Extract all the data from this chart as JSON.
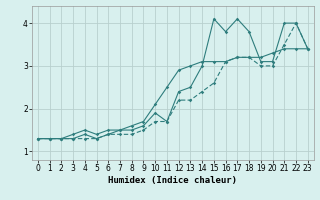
{
  "x": [
    0,
    1,
    2,
    3,
    4,
    5,
    6,
    7,
    8,
    9,
    10,
    11,
    12,
    13,
    14,
    15,
    16,
    17,
    18,
    19,
    20,
    21,
    22,
    23
  ],
  "line1": [
    1.3,
    1.3,
    1.3,
    1.3,
    1.4,
    1.3,
    1.4,
    1.5,
    1.5,
    1.6,
    1.9,
    1.7,
    2.4,
    2.5,
    3.0,
    4.1,
    3.8,
    4.1,
    3.8,
    3.1,
    3.1,
    4.0,
    4.0,
    3.4
  ],
  "line2": [
    1.3,
    1.3,
    1.3,
    1.4,
    1.5,
    1.4,
    1.5,
    1.5,
    1.6,
    1.7,
    2.1,
    2.5,
    2.9,
    3.0,
    3.1,
    3.1,
    3.1,
    3.2,
    3.2,
    3.2,
    3.3,
    3.4,
    3.4,
    3.4
  ],
  "line3": [
    1.3,
    1.3,
    1.3,
    1.3,
    1.3,
    1.3,
    1.4,
    1.4,
    1.4,
    1.5,
    1.7,
    1.7,
    2.2,
    2.2,
    2.4,
    2.6,
    3.1,
    3.2,
    3.2,
    3.0,
    3.0,
    3.5,
    4.0,
    3.4
  ],
  "line_color": "#2e7d7d",
  "bg_color": "#d8f0ee",
  "grid_color": "#b8d0ce",
  "xlabel": "Humidex (Indice chaleur)",
  "ylim": [
    0.8,
    4.4
  ],
  "xlim": [
    -0.5,
    23.5
  ],
  "yticks": [
    1,
    2,
    3,
    4
  ],
  "xticks": [
    0,
    1,
    2,
    3,
    4,
    5,
    6,
    7,
    8,
    9,
    10,
    11,
    12,
    13,
    14,
    15,
    16,
    17,
    18,
    19,
    20,
    21,
    22,
    23
  ]
}
